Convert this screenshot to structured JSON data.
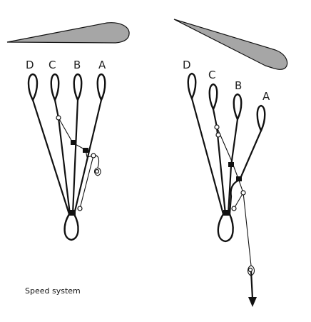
{
  "caption": "Speed system",
  "colors": {
    "wing": "#a6a6a6",
    "stroke": "#111111",
    "background": "#ffffff"
  },
  "left": {
    "line_labels": [
      "D",
      "C",
      "B",
      "A"
    ]
  },
  "right": {
    "line_labels": [
      "D",
      "C",
      "B",
      "A"
    ]
  }
}
